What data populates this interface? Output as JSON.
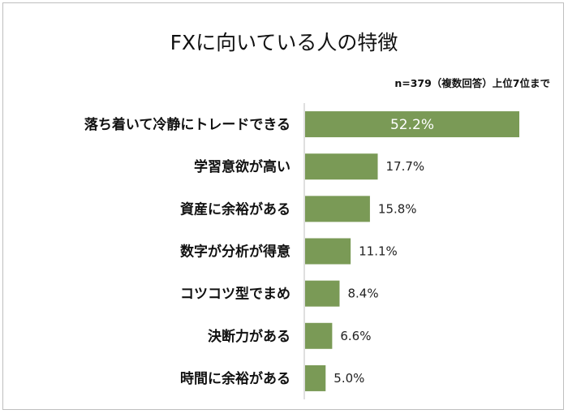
{
  "chart_data": {
    "type": "bar",
    "orientation": "horizontal",
    "title": "FXに向いている人の特徴",
    "subtitle": "n=379（複数回答）上位7位まで",
    "categories": [
      "落ち着いて冷静にトレードできる",
      "学習意欲が高い",
      "資産に余裕がある",
      "数字が分析が得意",
      "コツコツ型でまめ",
      "決断力がある",
      "時間に余裕がある"
    ],
    "values": [
      52.2,
      17.7,
      15.8,
      11.1,
      8.4,
      6.6,
      5.0
    ],
    "value_labels": [
      "52.2%",
      "17.7%",
      "15.8%",
      "11.1%",
      "8.4%",
      "6.6%",
      "5.0%"
    ],
    "unit": "%",
    "xlim": [
      0,
      52.2
    ],
    "grid": false,
    "legend": "none",
    "colors": {
      "bar": "#7a9a56",
      "axis": "#bfbfbf",
      "label_inside": "#ffffff"
    }
  }
}
